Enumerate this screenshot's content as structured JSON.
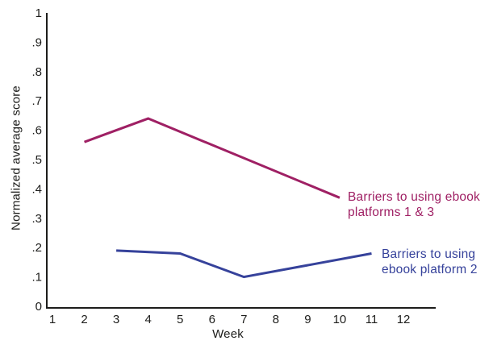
{
  "chart_data": {
    "type": "line",
    "title": "",
    "xlabel": "Week",
    "ylabel": "Normalized average score",
    "xlim": [
      1,
      12
    ],
    "ylim": [
      0,
      1
    ],
    "grid": false,
    "legend_position": "inline-annotations",
    "axis_color": "#1d1d1b",
    "background_color": "#ffffff",
    "x_ticks": [
      {
        "v": 1,
        "label": "1"
      },
      {
        "v": 2,
        "label": "2"
      },
      {
        "v": 3,
        "label": "3"
      },
      {
        "v": 4,
        "label": "4"
      },
      {
        "v": 5,
        "label": "5"
      },
      {
        "v": 6,
        "label": "6"
      },
      {
        "v": 7,
        "label": "7"
      },
      {
        "v": 8,
        "label": "8"
      },
      {
        "v": 9,
        "label": "9"
      },
      {
        "v": 10,
        "label": "10"
      },
      {
        "v": 11,
        "label": "11"
      },
      {
        "v": 12,
        "label": "12"
      }
    ],
    "y_ticks": [
      {
        "v": 0,
        "label": "0"
      },
      {
        "v": 0.1,
        "label": ".1"
      },
      {
        "v": 0.2,
        "label": ".2"
      },
      {
        "v": 0.3,
        "label": ".3"
      },
      {
        "v": 0.4,
        "label": ".4"
      },
      {
        "v": 0.5,
        "label": ".5"
      },
      {
        "v": 0.6,
        "label": ".6"
      },
      {
        "v": 0.7,
        "label": ".7"
      },
      {
        "v": 0.8,
        "label": ".8"
      },
      {
        "v": 0.9,
        "label": ".9"
      },
      {
        "v": 1,
        "label": "1"
      }
    ],
    "series": [
      {
        "id": "barriers-platforms-1-3",
        "name": "Barriers to using ebook platforms 1 & 3",
        "color": "#9f2064",
        "x": [
          2,
          4,
          10
        ],
        "values": [
          0.56,
          0.64,
          0.37
        ]
      },
      {
        "id": "barriers-platform-2",
        "name": "Barriers to using ebook platform 2",
        "color": "#36429b",
        "x": [
          3,
          5,
          7,
          11
        ],
        "values": [
          0.19,
          0.18,
          0.1,
          0.18
        ]
      }
    ],
    "annotations": [
      {
        "series_id": "barriers-platforms-1-3",
        "lines": [
          "Barriers to using ebook",
          "platforms 1 & 3"
        ]
      },
      {
        "series_id": "barriers-platform-2",
        "lines": [
          "Barriers to using",
          "ebook platform 2"
        ]
      }
    ]
  }
}
